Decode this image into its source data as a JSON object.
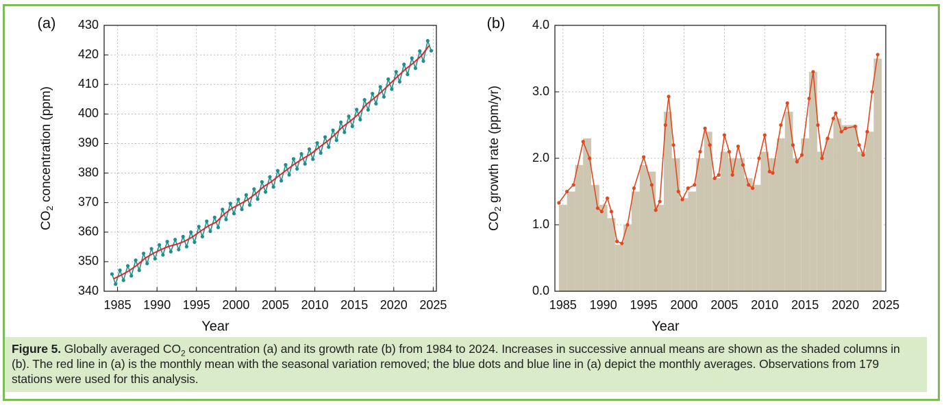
{
  "chart_data": [
    {
      "type": "line",
      "panel_label": "(a)",
      "xlabel": "Year",
      "ylabel_parts": [
        "CO",
        "2",
        " concentration (ppm)"
      ],
      "xlim": [
        1983.3,
        2025.4
      ],
      "xticks": [
        1985,
        1990,
        1995,
        2000,
        2005,
        2010,
        2015,
        2020,
        2025
      ],
      "ylim": [
        340,
        430
      ],
      "yticks": [
        340,
        350,
        360,
        370,
        380,
        390,
        400,
        410,
        420,
        430
      ],
      "grid": true,
      "series": [
        {
          "color": "#1f8f8c",
          "markers": true,
          "x": [
            1984.3,
            1984.75,
            1985.3,
            1985.75,
            1986.3,
            1986.75,
            1987.3,
            1987.75,
            1988.3,
            1988.75,
            1989.3,
            1989.75,
            1990.3,
            1990.75,
            1991.3,
            1991.75,
            1992.3,
            1992.75,
            1993.3,
            1993.75,
            1994.3,
            1994.75,
            1995.3,
            1995.75,
            1996.3,
            1996.75,
            1997.3,
            1997.75,
            1998.3,
            1998.75,
            1999.3,
            1999.75,
            2000.3,
            2000.75,
            2001.3,
            2001.75,
            2002.3,
            2002.75,
            2003.3,
            2003.75,
            2004.3,
            2004.75,
            2005.3,
            2005.75,
            2006.3,
            2006.75,
            2007.3,
            2007.75,
            2008.3,
            2008.75,
            2009.3,
            2009.75,
            2010.3,
            2010.75,
            2011.3,
            2011.75,
            2012.3,
            2012.75,
            2013.3,
            2013.75,
            2014.3,
            2014.75,
            2015.3,
            2015.75,
            2016.3,
            2016.75,
            2017.3,
            2017.75,
            2018.3,
            2018.75,
            2019.3,
            2019.75,
            2020.3,
            2020.75,
            2021.3,
            2021.75,
            2022.3,
            2022.75,
            2023.3,
            2023.75,
            2024.3,
            2024.75
          ],
          "values": [
            345.8,
            342.4,
            347.1,
            343.7,
            348.6,
            345.2,
            350.5,
            347.1,
            352.8,
            349.4,
            354.4,
            351.0,
            355.7,
            352.3,
            356.8,
            353.4,
            357.5,
            354.1,
            358.5,
            355.1,
            360.0,
            356.6,
            361.9,
            358.5,
            363.7,
            360.3,
            365.0,
            361.6,
            367.7,
            364.3,
            369.7,
            366.3,
            371.1,
            367.7,
            372.6,
            369.2,
            374.6,
            371.2,
            377.0,
            373.6,
            378.7,
            375.3,
            380.8,
            377.4,
            382.8,
            379.4,
            384.8,
            381.4,
            386.5,
            383.1,
            388.1,
            384.7,
            390.2,
            386.8,
            392.2,
            388.8,
            394.5,
            391.1,
            397.2,
            393.8,
            399.2,
            395.8,
            401.5,
            398.1,
            404.8,
            401.4,
            406.9,
            403.5,
            409.2,
            405.8,
            411.8,
            408.4,
            414.3,
            410.9,
            416.8,
            413.4,
            418.9,
            415.5,
            421.3,
            417.9,
            424.8,
            421.4
          ]
        },
        {
          "color": "#d9262b",
          "markers": false,
          "x": [
            1984.5,
            1985.5,
            1986.5,
            1987.5,
            1988.5,
            1989.5,
            1990.5,
            1991.5,
            1992.5,
            1993.5,
            1994.5,
            1995.5,
            1996.5,
            1997.5,
            1998.5,
            1999.5,
            2000.5,
            2001.5,
            2002.5,
            2003.5,
            2004.5,
            2005.5,
            2006.5,
            2007.5,
            2008.5,
            2009.5,
            2010.5,
            2011.5,
            2012.5,
            2013.5,
            2014.5,
            2015.5,
            2016.5,
            2017.5,
            2018.5,
            2019.5,
            2020.5,
            2021.5,
            2022.5,
            2023.5,
            2024.5
          ],
          "values": [
            344.2,
            345.5,
            347.0,
            348.9,
            351.2,
            352.8,
            354.1,
            355.2,
            355.9,
            356.9,
            358.4,
            360.3,
            362.1,
            363.4,
            366.1,
            368.1,
            369.5,
            371.0,
            373.0,
            375.4,
            377.1,
            379.2,
            381.2,
            383.2,
            384.9,
            386.5,
            388.6,
            390.6,
            392.9,
            395.6,
            397.6,
            399.9,
            403.2,
            405.3,
            407.6,
            410.2,
            412.7,
            415.2,
            417.3,
            419.7,
            423.2
          ]
        }
      ]
    },
    {
      "type": "bar",
      "panel_label": "(b)",
      "xlabel": "Year",
      "ylabel_parts": [
        "CO",
        "2",
        " growth rate (ppm/yr)"
      ],
      "xlim": [
        1984,
        2025
      ],
      "xticks": [
        1985,
        1990,
        1995,
        2000,
        2005,
        2010,
        2015,
        2020,
        2025
      ],
      "ylim": [
        0,
        4
      ],
      "yticks": [
        {
          "value": 0,
          "label": "0.0"
        },
        {
          "value": 1,
          "label": "1.0"
        },
        {
          "value": 2,
          "label": "2.0"
        },
        {
          "value": 3,
          "label": "3.0"
        },
        {
          "value": 4,
          "label": "4.0"
        }
      ],
      "grid": true,
      "series": [
        {
          "type": "bar",
          "color": "#cdc7b2",
          "x": [
            1985,
            1986,
            1987,
            1988,
            1989,
            1990,
            1991,
            1992,
            1993,
            1994,
            1995,
            1996,
            1997,
            1998,
            1999,
            2000,
            2001,
            2002,
            2003,
            2004,
            2005,
            2006,
            2007,
            2008,
            2009,
            2010,
            2011,
            2012,
            2013,
            2014,
            2015,
            2016,
            2017,
            2018,
            2019,
            2020,
            2021,
            2022,
            2023,
            2024
          ],
          "values": [
            1.3,
            1.5,
            1.9,
            2.3,
            1.6,
            1.3,
            1.1,
            0.7,
            1.0,
            1.5,
            1.9,
            1.8,
            1.3,
            2.7,
            2.0,
            1.4,
            1.5,
            2.0,
            2.4,
            1.7,
            2.1,
            2.0,
            2.0,
            1.7,
            1.6,
            2.1,
            2.0,
            2.3,
            2.7,
            2.0,
            2.3,
            3.3,
            2.1,
            2.3,
            2.6,
            2.5,
            2.5,
            2.1,
            2.4,
            3.5
          ]
        },
        {
          "type": "line",
          "color": "#e2471f",
          "markers": true,
          "x": [
            1984.5,
            1985.5,
            1986.3,
            1987.5,
            1988.3,
            1989.3,
            1989.8,
            1990.5,
            1991.0,
            1991.7,
            1992.3,
            1993.0,
            1993.8,
            1995.0,
            1996.0,
            1996.5,
            1997.0,
            1997.7,
            1998.1,
            1998.7,
            1999.3,
            1999.8,
            2000.5,
            2001.3,
            2002.0,
            2002.6,
            2003.2,
            2003.8,
            2004.3,
            2005.0,
            2005.6,
            2006.0,
            2006.7,
            2007.3,
            2008.0,
            2008.5,
            2009.3,
            2010.0,
            2010.6,
            2011.0,
            2012.0,
            2012.8,
            2013.5,
            2014.0,
            2014.6,
            2015.5,
            2016.0,
            2016.6,
            2017.1,
            2017.8,
            2018.5,
            2018.8,
            2019.5,
            2020.0,
            2021.2,
            2021.7,
            2022.2,
            2022.7,
            2023.3,
            2024.0
          ],
          "values": [
            1.33,
            1.5,
            1.6,
            2.25,
            2.0,
            1.25,
            1.2,
            1.4,
            1.2,
            0.75,
            0.72,
            1.0,
            1.55,
            2.02,
            1.6,
            1.22,
            1.35,
            2.5,
            2.93,
            2.2,
            1.5,
            1.38,
            1.55,
            1.6,
            2.1,
            2.45,
            2.2,
            1.7,
            1.75,
            2.35,
            2.1,
            1.75,
            2.18,
            1.9,
            1.6,
            1.55,
            2.0,
            2.35,
            1.8,
            1.78,
            2.5,
            2.83,
            2.2,
            1.95,
            2.05,
            2.9,
            3.3,
            2.5,
            2.0,
            2.3,
            2.6,
            2.68,
            2.4,
            2.45,
            2.48,
            2.2,
            2.05,
            2.4,
            3.0,
            3.56
          ]
        }
      ]
    }
  ],
  "caption": {
    "label": "Figure 5.",
    "text_before": "Globally averaged CO",
    "subscript": "2",
    "text_after": " concentration (a) and its growth rate (b) from 1984 to 2024. Increases in successive annual means are shown as the shaded columns in (b). The red line in (a) is the monthly mean with the seasonal variation removed; the blue dots and blue line in (a) depict the monthly averages. Observations from 179 stations were used for this analysis."
  }
}
